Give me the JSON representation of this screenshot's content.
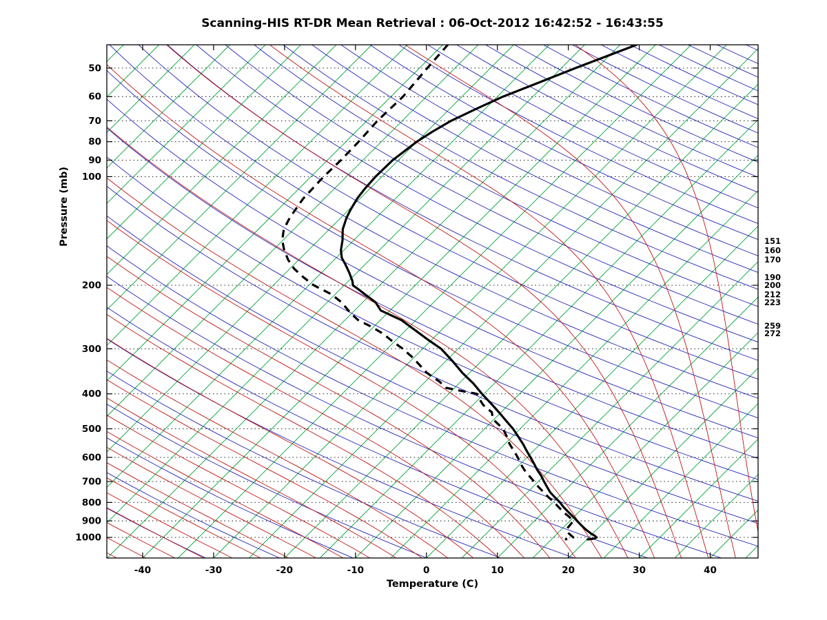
{
  "title": "Scanning-HIS RT-DR Mean Retrieval : 06-Oct-2012 16:42:52 - 16:43:55",
  "axes": {
    "x_label": "Temperature (C)",
    "y_label": "Pressure (mb)"
  },
  "chart_data": {
    "type": "line",
    "subtype": "skewT-logP",
    "title": "Scanning-HIS RT-DR Mean Retrieval : 06-Oct-2012 16:42:52 - 16:43:55",
    "xlabel": "Temperature (C)",
    "ylabel": "Pressure (mb)",
    "x_axis": {
      "ticks": [
        -40,
        -30,
        -20,
        -10,
        0,
        10,
        20,
        30,
        40
      ],
      "t_plot_min": -45.05,
      "t_plot_max": 46.75
    },
    "y_axis": {
      "type": "log",
      "top_mb": 43.1,
      "bottom_mb": 1140.6,
      "ticks": [
        50,
        60,
        70,
        80,
        90,
        100,
        200,
        300,
        400,
        500,
        600,
        700,
        800,
        900,
        1000
      ]
    },
    "skew_deg_per_decade": 50.82,
    "right_pressure_labels": [
      151,
      160,
      170,
      190,
      200,
      212,
      223,
      259,
      272
    ],
    "background": {
      "isotherms": {
        "color": "#00a337",
        "min": -115,
        "max": 45,
        "step": 5
      },
      "dry_adiabats": {
        "color": "#2424b8",
        "min": -40,
        "max": 330,
        "step": 10
      },
      "moist_adiabats": {
        "color": "#c01414",
        "min": -60,
        "max": 44,
        "step": 4
      },
      "pressure_lines": {
        "color": "#000000",
        "style": "dotted",
        "values": [
          50,
          60,
          70,
          80,
          90,
          100,
          200,
          300,
          400,
          500,
          600,
          700,
          800,
          900,
          1000
        ]
      }
    },
    "series": [
      {
        "name": "temperature",
        "line": "solid",
        "color": "#000000",
        "points_p_t": [
          [
            43,
            -42.6
          ],
          [
            50,
            -48
          ],
          [
            55,
            -51.2
          ],
          [
            60,
            -54.2
          ],
          [
            65,
            -56.3
          ],
          [
            70,
            -58.1
          ],
          [
            75,
            -59.2
          ],
          [
            80,
            -60
          ],
          [
            90,
            -60.8
          ],
          [
            100,
            -60.9
          ],
          [
            108,
            -60.7
          ],
          [
            115,
            -60.4
          ],
          [
            123,
            -59.8
          ],
          [
            130,
            -59.2
          ],
          [
            140,
            -58.1
          ],
          [
            150,
            -56.6
          ],
          [
            160,
            -55.4
          ],
          [
            168,
            -54.2
          ],
          [
            175,
            -52.8
          ],
          [
            185,
            -51
          ],
          [
            195,
            -49.4
          ],
          [
            200,
            -48.8
          ],
          [
            205,
            -47.5
          ],
          [
            212,
            -45.8
          ],
          [
            223,
            -43.2
          ],
          [
            235,
            -41.3
          ],
          [
            250,
            -37
          ],
          [
            270,
            -33
          ],
          [
            285,
            -30.2
          ],
          [
            300,
            -27.4
          ],
          [
            325,
            -24
          ],
          [
            350,
            -21
          ],
          [
            375,
            -17.9
          ],
          [
            400,
            -15.3
          ],
          [
            425,
            -12.7
          ],
          [
            450,
            -10.3
          ],
          [
            475,
            -8.1
          ],
          [
            500,
            -6
          ],
          [
            525,
            -4.2
          ],
          [
            550,
            -2.5
          ],
          [
            575,
            -1
          ],
          [
            600,
            0.5
          ],
          [
            625,
            1.9
          ],
          [
            650,
            3.2
          ],
          [
            675,
            4.6
          ],
          [
            700,
            5.8
          ],
          [
            725,
            7
          ],
          [
            750,
            8.2
          ],
          [
            775,
            9.6
          ],
          [
            800,
            11
          ],
          [
            825,
            12.2
          ],
          [
            850,
            13.5
          ],
          [
            875,
            14.8
          ],
          [
            900,
            16
          ],
          [
            925,
            17.2
          ],
          [
            950,
            18.4
          ],
          [
            975,
            19.7
          ],
          [
            990,
            20.6
          ],
          [
            1000,
            21.1
          ],
          [
            1008,
            20.9
          ],
          [
            1014,
            20
          ]
        ]
      },
      {
        "name": "dew_point",
        "line": "dashed",
        "color": "#000000",
        "points_p_t": [
          [
            43,
            -69.3
          ],
          [
            50,
            -68.9
          ],
          [
            60,
            -68.3
          ],
          [
            70,
            -68.5
          ],
          [
            80,
            -68.2
          ],
          [
            90,
            -68.1
          ],
          [
            100,
            -68.2
          ],
          [
            115,
            -68
          ],
          [
            130,
            -67.2
          ],
          [
            140,
            -66.4
          ],
          [
            150,
            -65.1
          ],
          [
            160,
            -63.4
          ],
          [
            170,
            -61.5
          ],
          [
            180,
            -59.4
          ],
          [
            190,
            -56.9
          ],
          [
            200,
            -54.3
          ],
          [
            212,
            -50.5
          ],
          [
            223,
            -48
          ],
          [
            240,
            -45
          ],
          [
            250,
            -43.1
          ],
          [
            260,
            -40.5
          ],
          [
            272,
            -37.8
          ],
          [
            285,
            -35.5
          ],
          [
            300,
            -32.8
          ],
          [
            315,
            -30.5
          ],
          [
            330,
            -28.5
          ],
          [
            350,
            -26
          ],
          [
            370,
            -23
          ],
          [
            385,
            -21.2
          ],
          [
            393,
            -18.5
          ],
          [
            400,
            -16
          ],
          [
            405,
            -15.6
          ],
          [
            415,
            -14.8
          ],
          [
            430,
            -13.5
          ],
          [
            450,
            -11.3
          ],
          [
            470,
            -10.2
          ],
          [
            500,
            -7.4
          ],
          [
            525,
            -5.8
          ],
          [
            550,
            -4.4
          ],
          [
            575,
            -2.8
          ],
          [
            600,
            -1.3
          ],
          [
            625,
            0
          ],
          [
            650,
            1.4
          ],
          [
            675,
            2.9
          ],
          [
            700,
            4.4
          ],
          [
            725,
            5.8
          ],
          [
            750,
            7.3
          ],
          [
            775,
            8.7
          ],
          [
            800,
            10.2
          ],
          [
            825,
            11.5
          ],
          [
            850,
            12.8
          ],
          [
            875,
            14.2
          ],
          [
            900,
            15.5
          ],
          [
            925,
            15.6
          ],
          [
            950,
            15.7
          ],
          [
            975,
            16.6
          ],
          [
            1000,
            17.8
          ],
          [
            1008,
            17.5
          ],
          [
            1013,
            16.9
          ]
        ]
      }
    ]
  }
}
